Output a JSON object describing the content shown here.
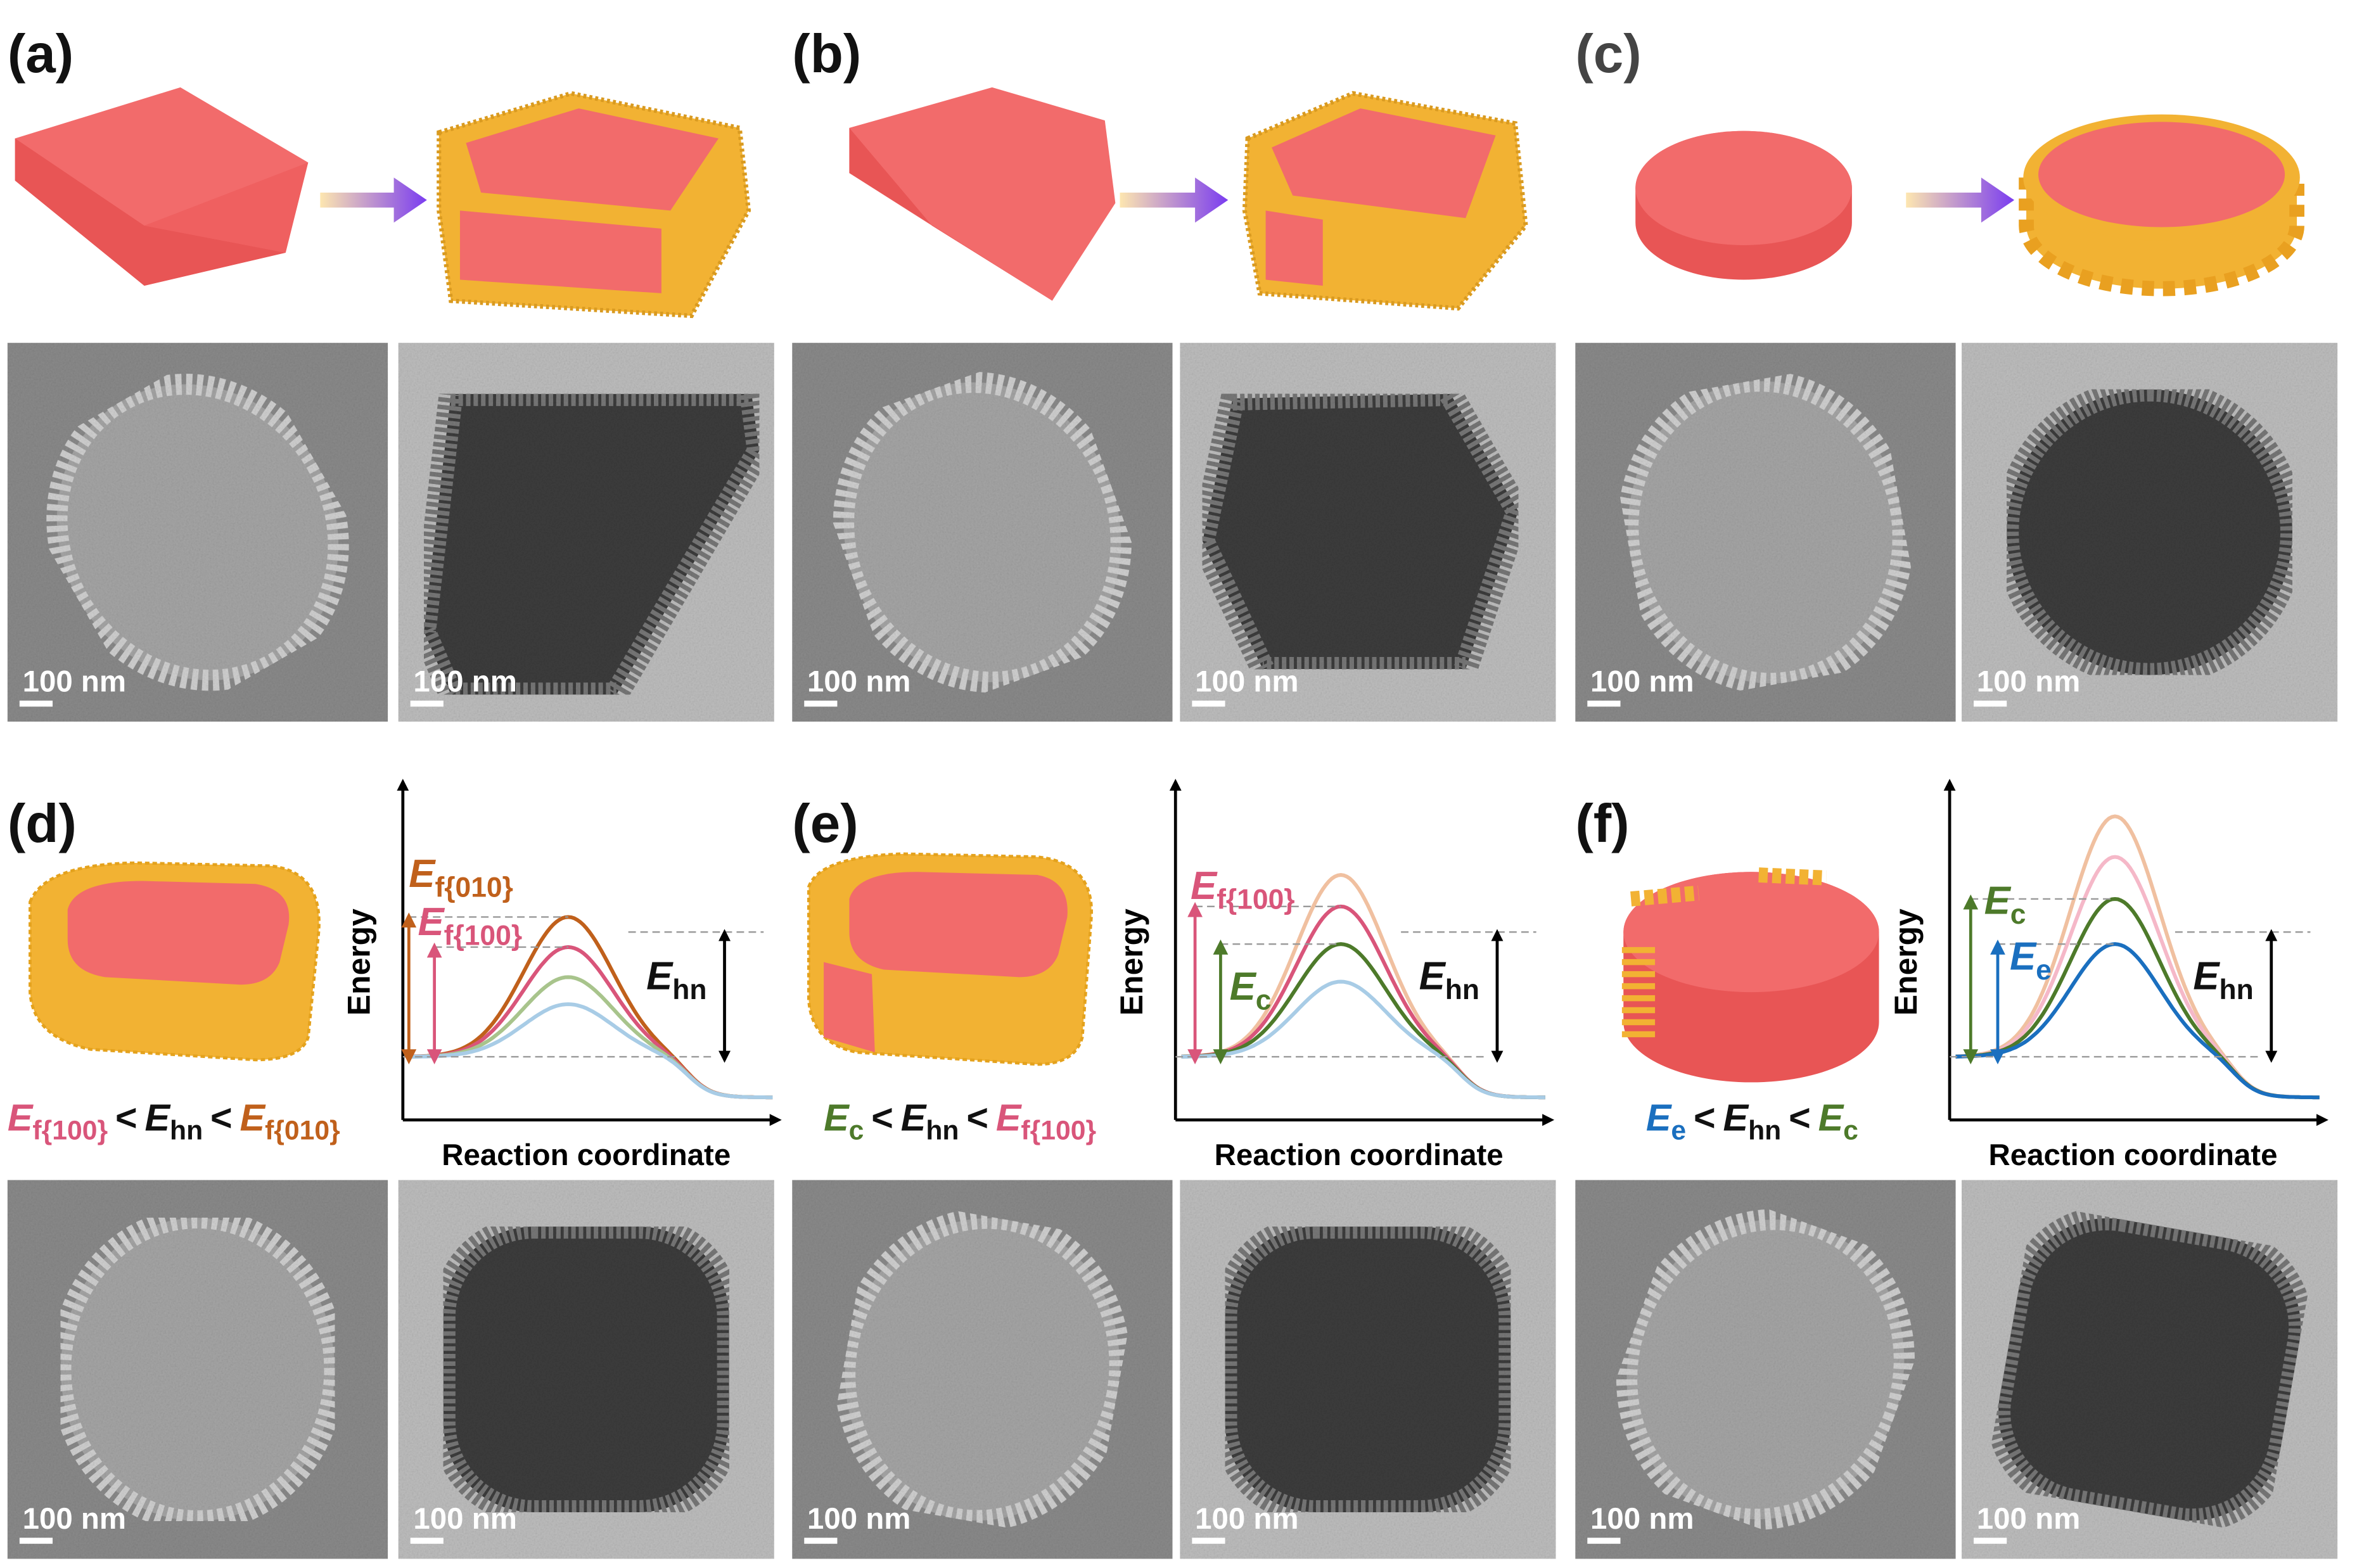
{
  "panels": [
    {
      "label": "(a)",
      "scale_bars": [
        "100 nm",
        "100 nm"
      ]
    },
    {
      "label": "(b)",
      "scale_bars": [
        "100 nm",
        "100 nm"
      ]
    },
    {
      "label": "(c)",
      "scale_bars": [
        "100 nm",
        "100 nm"
      ]
    },
    {
      "label": "(d)",
      "scale_bars": [
        "100 nm",
        "100 nm"
      ],
      "diagram": {
        "y_axis": "Energy",
        "x_axis": "Reaction coordinate",
        "labels": [
          {
            "main": "E",
            "sub": "f{010}"
          },
          {
            "main": "E",
            "sub": "f{100}"
          },
          {
            "main": "E",
            "sub": "hn"
          }
        ],
        "inequality": [
          {
            "main": "E",
            "sub": "f{100}"
          },
          {
            "main": "<"
          },
          {
            "main": "E",
            "sub": "hn"
          },
          {
            "main": "<"
          },
          {
            "main": "E",
            "sub": "f{010}"
          }
        ]
      }
    },
    {
      "label": "(e)",
      "scale_bars": [
        "100 nm",
        "100 nm"
      ],
      "diagram": {
        "y_axis": "Energy",
        "x_axis": "Reaction coordinate",
        "labels": [
          {
            "main": "E",
            "sub": "f{100}"
          },
          {
            "main": "E",
            "sub": "c"
          },
          {
            "main": "E",
            "sub": "hn"
          }
        ],
        "inequality": [
          {
            "main": "E",
            "sub": "c"
          },
          {
            "main": "<"
          },
          {
            "main": "E",
            "sub": "hn"
          },
          {
            "main": "<"
          },
          {
            "main": "E",
            "sub": "f{100}"
          }
        ]
      }
    },
    {
      "label": "(f)",
      "scale_bars": [
        "100 nm",
        "100 nm"
      ],
      "diagram": {
        "y_axis": "Energy",
        "x_axis": "Reaction coordinate",
        "labels": [
          {
            "main": "E",
            "sub": "c"
          },
          {
            "main": "E",
            "sub": "e"
          },
          {
            "main": "E",
            "sub": "hn"
          }
        ],
        "inequality": [
          {
            "main": "E",
            "sub": "e"
          },
          {
            "main": "<"
          },
          {
            "main": "E",
            "sub": "hn"
          },
          {
            "main": "<"
          },
          {
            "main": "E",
            "sub": "c"
          }
        ]
      }
    }
  ]
}
